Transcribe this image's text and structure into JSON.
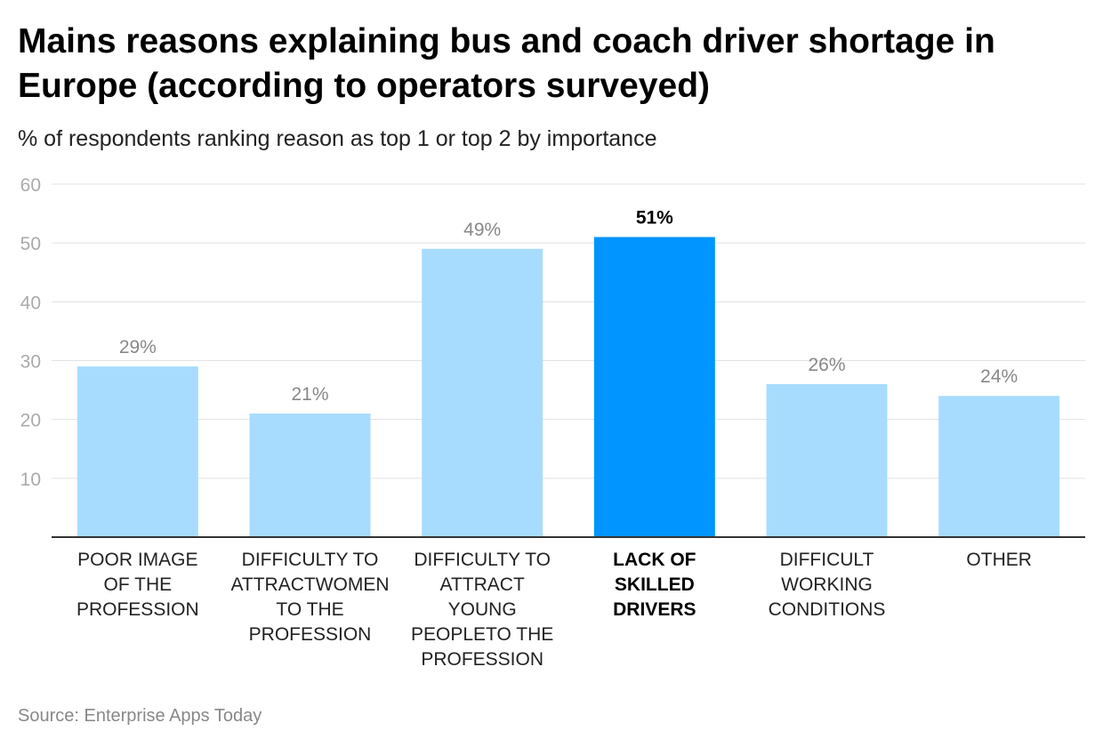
{
  "title": "Mains reasons explaining bus and coach driver shortage in Europe (according to operators surveyed)",
  "subtitle": "% of respondents ranking reason as top 1 or top 2 by importance",
  "source": "Source: Enterprise Apps Today",
  "chart_data": {
    "type": "bar",
    "categories": [
      "POOR IMAGE OF THE PROFESSION",
      "DIFFICULTY TO ATTRACTWOMEN TO THE PROFESSION",
      "DIFFICULTY TO ATTRACT YOUNG PEOPLETO THE PROFESSION",
      "LACK OF SKILLED DRIVERS",
      "DIFFICULT WORKING CONDITIONS",
      "OTHER"
    ],
    "category_lines": [
      [
        "POOR IMAGE",
        "OF THE",
        "PROFESSION"
      ],
      [
        "DIFFICULTY TO",
        "ATTRACTWOMEN",
        "TO THE",
        "PROFESSION"
      ],
      [
        "DIFFICULTY TO",
        "ATTRACT",
        "YOUNG",
        "PEOPLETO THE",
        "PROFESSION"
      ],
      [
        "LACK OF",
        "SKILLED",
        "DRIVERS"
      ],
      [
        "DIFFICULT",
        "WORKING",
        "CONDITIONS"
      ],
      [
        "OTHER"
      ]
    ],
    "values": [
      29,
      21,
      49,
      51,
      26,
      24
    ],
    "data_labels": [
      "29%",
      "21%",
      "49%",
      "51%",
      "26%",
      "24%"
    ],
    "highlight_index": 3,
    "ylim": [
      0,
      60
    ],
    "yticks": [
      10,
      20,
      30,
      40,
      50,
      60
    ],
    "grid": true,
    "colors": {
      "bar": "#a8dcfe",
      "highlight": "#0095ff",
      "grid": "#e3e3e3",
      "axis": "#333333",
      "tick_text": "#aaaaaa",
      "label_text": "#888888"
    }
  }
}
